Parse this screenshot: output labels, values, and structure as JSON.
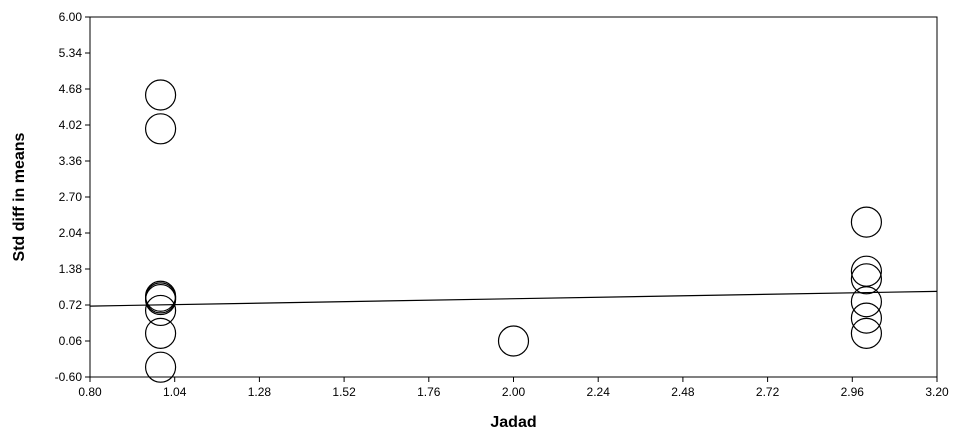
{
  "chart_data": {
    "type": "scatter",
    "title": "",
    "xlabel": "Jadad",
    "ylabel": "Std diff in means",
    "xlim": [
      0.8,
      3.2
    ],
    "ylim": [
      -0.6,
      6.0
    ],
    "x_ticks": [
      "0.80",
      "1.04",
      "1.28",
      "1.52",
      "1.76",
      "2.00",
      "2.24",
      "2.48",
      "2.72",
      "2.96",
      "3.20"
    ],
    "y_ticks": [
      "-0.60",
      "0.06",
      "0.72",
      "1.38",
      "2.04",
      "2.70",
      "3.36",
      "4.02",
      "4.68",
      "5.34",
      "6.00"
    ],
    "grid": false,
    "marker": "open-circle",
    "points": [
      {
        "x": 1.0,
        "y": 4.57
      },
      {
        "x": 1.0,
        "y": 3.95
      },
      {
        "x": 1.0,
        "y": 0.88
      },
      {
        "x": 1.0,
        "y": 0.85
      },
      {
        "x": 1.0,
        "y": 0.82
      },
      {
        "x": 1.0,
        "y": 0.62
      },
      {
        "x": 1.0,
        "y": 0.2
      },
      {
        "x": 1.0,
        "y": -0.42
      },
      {
        "x": 2.0,
        "y": 0.06
      },
      {
        "x": 3.0,
        "y": 2.24
      },
      {
        "x": 3.0,
        "y": 1.34
      },
      {
        "x": 3.0,
        "y": 1.2
      },
      {
        "x": 3.0,
        "y": 0.78
      },
      {
        "x": 3.0,
        "y": 0.48
      },
      {
        "x": 3.0,
        "y": 0.2
      }
    ],
    "regression_line": {
      "x": [
        0.8,
        3.2
      ],
      "y": [
        0.7,
        0.97
      ]
    }
  }
}
